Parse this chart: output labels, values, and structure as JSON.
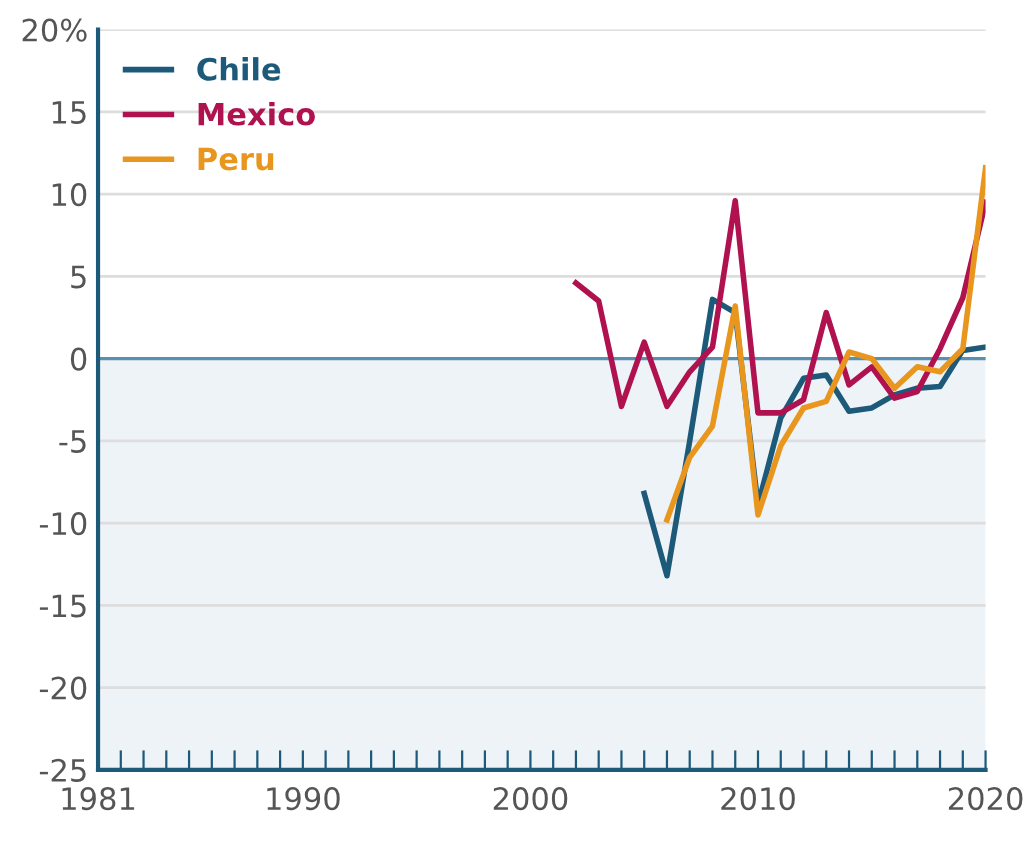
{
  "chart_data": {
    "type": "line",
    "x": [
      2002,
      2003,
      2004,
      2005,
      2006,
      2007,
      2008,
      2009,
      2010,
      2011,
      2012,
      2013,
      2014,
      2015,
      2016,
      2017,
      2018,
      2019,
      2020
    ],
    "series": [
      {
        "name": "Chile",
        "color": "#1d5a7a",
        "x": [
          2005,
          2006,
          2007,
          2008,
          2009,
          2010,
          2011,
          2012,
          2013,
          2014,
          2015,
          2016,
          2017,
          2018,
          2019,
          2020
        ],
        "values": [
          -8.2,
          -13.2,
          -5,
          3.6,
          2.8,
          -8.9,
          -3.6,
          -1.2,
          -1,
          -3.2,
          -3,
          -2.2,
          -1.8,
          -1.7,
          0.5,
          0.7
        ]
      },
      {
        "name": "Mexico",
        "color": "#b0124f",
        "values": [
          4.6,
          3.5,
          -2.9,
          1,
          -2.9,
          -0.8,
          0.7,
          9.6,
          -3.3,
          -3.3,
          -2.5,
          2.8,
          -1.6,
          -0.5,
          -2.4,
          -2,
          0.6,
          3.7,
          9.5
        ]
      },
      {
        "name": "Peru",
        "color": "#e8961e",
        "x": [
          2006,
          2007,
          2008,
          2009,
          2010,
          2011,
          2012,
          2013,
          2014,
          2015,
          2016,
          2017,
          2018,
          2019,
          2020
        ],
        "values": [
          -9.8,
          -6,
          -4.1,
          3.2,
          -9.5,
          -5.3,
          -3,
          -2.6,
          0.4,
          0,
          -1.8,
          -0.5,
          -0.8,
          0.6,
          11.6
        ]
      }
    ],
    "xlim": [
      1981,
      2020
    ],
    "xticks": [
      1981,
      {
        "value": 1982,
        "label": null
      },
      {
        "value": 1983,
        "label": null
      },
      {
        "value": 1984,
        "label": null
      },
      {
        "value": 1985,
        "label": null
      },
      {
        "value": 1986,
        "label": null
      },
      {
        "value": 1987,
        "label": null
      },
      {
        "value": 1988,
        "label": null
      },
      {
        "value": 1989,
        "label": null
      },
      1990,
      {
        "value": 1991,
        "label": null
      },
      {
        "value": 1992,
        "label": null
      },
      {
        "value": 1993,
        "label": null
      },
      {
        "value": 1994,
        "label": null
      },
      {
        "value": 1995,
        "label": null
      },
      {
        "value": 1996,
        "label": null
      },
      {
        "value": 1997,
        "label": null
      },
      {
        "value": 1998,
        "label": null
      },
      {
        "value": 1999,
        "label": null
      },
      2000,
      {
        "value": 2001,
        "label": null
      },
      {
        "value": 2002,
        "label": null
      },
      {
        "value": 2003,
        "label": null
      },
      {
        "value": 2004,
        "label": null
      },
      {
        "value": 2005,
        "label": null
      },
      {
        "value": 2006,
        "label": null
      },
      {
        "value": 2007,
        "label": null
      },
      {
        "value": 2008,
        "label": null
      },
      {
        "value": 2009,
        "label": null
      },
      2010,
      {
        "value": 2011,
        "label": null
      },
      {
        "value": 2012,
        "label": null
      },
      {
        "value": 2013,
        "label": null
      },
      {
        "value": 2014,
        "label": null
      },
      {
        "value": 2015,
        "label": null
      },
      {
        "value": 2016,
        "label": null
      },
      {
        "value": 2017,
        "label": null
      },
      {
        "value": 2018,
        "label": null
      },
      {
        "value": 2019,
        "label": null
      },
      2020
    ],
    "ylim": [
      -25,
      20
    ],
    "yticks": [
      -25,
      -20,
      -15,
      -10,
      -5,
      0,
      5,
      10,
      15,
      {
        "value": 20,
        "label": "20%"
      }
    ],
    "ref_lines": [
      {
        "axis": "y",
        "value": 0,
        "color": "#5b8fb0"
      }
    ],
    "bands": [
      {
        "axis": "y",
        "from": -25,
        "to": 0,
        "color": "#eef3f8"
      }
    ],
    "grid": "y",
    "legend": "top left",
    "line_style": "solid",
    "marker": "none"
  }
}
